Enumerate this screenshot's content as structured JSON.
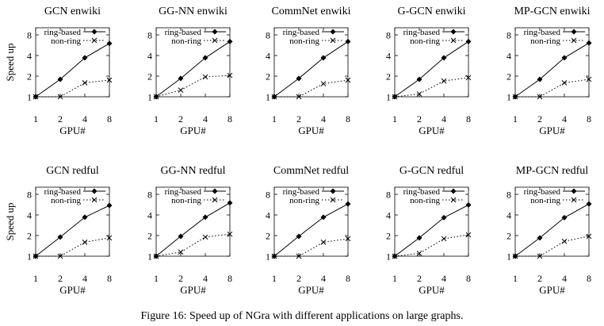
{
  "figure": {
    "caption": "Figure 16: Speed up of NGra with different applications on large graphs."
  },
  "chart_data": [
    {
      "type": "line",
      "title": "GCN enwiki",
      "xlabel": "GPU#",
      "ylabel": "Speed up",
      "x": [
        1,
        2,
        4,
        8
      ],
      "x_scale": "log2",
      "y_scale": "log2",
      "ylim": [
        1,
        8
      ],
      "yticks": [
        1,
        2,
        4,
        8
      ],
      "legend": "top-right",
      "series": [
        {
          "name": "ring-based",
          "values": [
            1,
            1.8,
            3.7,
            6.0
          ]
        },
        {
          "name": "non-ring",
          "values": [
            1,
            1.0,
            1.6,
            1.75
          ]
        }
      ]
    },
    {
      "type": "line",
      "title": "GG-NN enwiki",
      "xlabel": "GPU#",
      "ylabel": "",
      "x": [
        1,
        2,
        4,
        8
      ],
      "x_scale": "log2",
      "y_scale": "log2",
      "ylim": [
        1,
        8
      ],
      "yticks": [
        1,
        2,
        4,
        8
      ],
      "legend": "top-right",
      "series": [
        {
          "name": "ring-based",
          "values": [
            1,
            1.85,
            3.7,
            6.4
          ]
        },
        {
          "name": "non-ring",
          "values": [
            1,
            1.25,
            1.95,
            2.05
          ]
        }
      ]
    },
    {
      "type": "line",
      "title": "CommNet enwiki",
      "xlabel": "GPU#",
      "ylabel": "",
      "x": [
        1,
        2,
        4,
        8
      ],
      "x_scale": "log2",
      "y_scale": "log2",
      "ylim": [
        1,
        8
      ],
      "yticks": [
        1,
        2,
        4,
        8
      ],
      "legend": "top-right",
      "series": [
        {
          "name": "ring-based",
          "values": [
            1,
            1.85,
            3.7,
            6.4
          ]
        },
        {
          "name": "non-ring",
          "values": [
            1,
            1.0,
            1.55,
            1.75
          ]
        }
      ]
    },
    {
      "type": "line",
      "title": "G-GCN enwiki",
      "xlabel": "GPU#",
      "ylabel": "",
      "x": [
        1,
        2,
        4,
        8
      ],
      "x_scale": "log2",
      "y_scale": "log2",
      "ylim": [
        1,
        8
      ],
      "yticks": [
        1,
        2,
        4,
        8
      ],
      "legend": "top-right",
      "series": [
        {
          "name": "ring-based",
          "values": [
            1,
            1.8,
            3.7,
            6.4
          ]
        },
        {
          "name": "non-ring",
          "values": [
            1,
            1.1,
            1.7,
            1.9
          ]
        }
      ]
    },
    {
      "type": "line",
      "title": "MP-GCN enwiki",
      "xlabel": "GPU#",
      "ylabel": "",
      "x": [
        1,
        2,
        4,
        8
      ],
      "x_scale": "log2",
      "y_scale": "log2",
      "ylim": [
        1,
        8
      ],
      "yticks": [
        1,
        2,
        4,
        8
      ],
      "legend": "top-right",
      "series": [
        {
          "name": "ring-based",
          "values": [
            1,
            1.8,
            3.7,
            6.1
          ]
        },
        {
          "name": "non-ring",
          "values": [
            1,
            1.0,
            1.6,
            1.8
          ]
        }
      ]
    },
    {
      "type": "line",
      "title": "GCN redful",
      "xlabel": "GPU#",
      "ylabel": "Speed up",
      "x": [
        1,
        2,
        4,
        8
      ],
      "x_scale": "log2",
      "y_scale": "log2",
      "ylim": [
        1,
        8
      ],
      "yticks": [
        1,
        2,
        4,
        8
      ],
      "legend": "top-right",
      "series": [
        {
          "name": "ring-based",
          "values": [
            1,
            1.9,
            3.7,
            5.5
          ]
        },
        {
          "name": "non-ring",
          "values": [
            1,
            1.0,
            1.6,
            1.85
          ]
        }
      ]
    },
    {
      "type": "line",
      "title": "GG-NN redful",
      "xlabel": "GPU#",
      "ylabel": "",
      "x": [
        1,
        2,
        4,
        8
      ],
      "x_scale": "log2",
      "y_scale": "log2",
      "ylim": [
        1,
        8
      ],
      "yticks": [
        1,
        2,
        4,
        8
      ],
      "legend": "top-right",
      "series": [
        {
          "name": "ring-based",
          "values": [
            1,
            1.95,
            3.7,
            6.0
          ]
        },
        {
          "name": "non-ring",
          "values": [
            1,
            1.15,
            1.9,
            2.1
          ]
        }
      ]
    },
    {
      "type": "line",
      "title": "CommNet redful",
      "xlabel": "GPU#",
      "ylabel": "",
      "x": [
        1,
        2,
        4,
        8
      ],
      "x_scale": "log2",
      "y_scale": "log2",
      "ylim": [
        1,
        8
      ],
      "yticks": [
        1,
        2,
        4,
        8
      ],
      "legend": "top-right",
      "series": [
        {
          "name": "ring-based",
          "values": [
            1,
            1.95,
            3.7,
            5.8
          ]
        },
        {
          "name": "non-ring",
          "values": [
            1,
            1.0,
            1.6,
            1.8
          ]
        }
      ]
    },
    {
      "type": "line",
      "title": "G-GCN redful",
      "xlabel": "GPU#",
      "ylabel": "",
      "x": [
        1,
        2,
        4,
        8
      ],
      "x_scale": "log2",
      "y_scale": "log2",
      "ylim": [
        1,
        8
      ],
      "yticks": [
        1,
        2,
        4,
        8
      ],
      "legend": "top-right",
      "series": [
        {
          "name": "ring-based",
          "values": [
            1,
            1.85,
            3.65,
            5.6
          ]
        },
        {
          "name": "non-ring",
          "values": [
            1,
            1.1,
            1.8,
            2.05
          ]
        }
      ]
    },
    {
      "type": "line",
      "title": "MP-GCN redful",
      "xlabel": "GPU#",
      "ylabel": "",
      "x": [
        1,
        2,
        4,
        8
      ],
      "x_scale": "log2",
      "y_scale": "log2",
      "ylim": [
        1,
        8
      ],
      "yticks": [
        1,
        2,
        4,
        8
      ],
      "legend": "top-right",
      "series": [
        {
          "name": "ring-based",
          "values": [
            1,
            1.85,
            3.65,
            5.8
          ]
        },
        {
          "name": "non-ring",
          "values": [
            1,
            1.0,
            1.65,
            1.95
          ]
        }
      ]
    }
  ]
}
